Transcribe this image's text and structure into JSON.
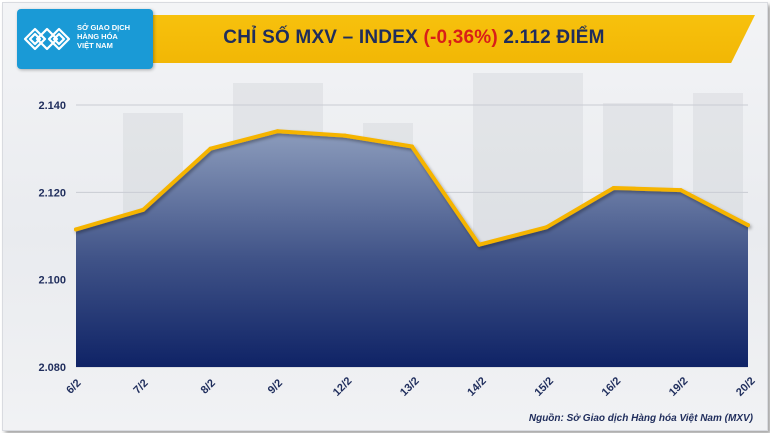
{
  "logo": {
    "lines": [
      "SỞ GIAO DỊCH",
      "HÀNG HÓA",
      "VIỆT NAM"
    ],
    "icon": "mxv-chevron-logo-icon"
  },
  "header": {
    "title_prefix": "CHỈ SỐ MXV – INDEX ",
    "change": "(-0,36%)",
    "title_suffix": " 2.112 ĐIỂM"
  },
  "source": "Nguồn: Sở Giao dịch Hàng hóa Việt Nam (MXV)",
  "colors": {
    "banner": "#f2b705",
    "line": "#f5b400",
    "area_top": "#8c9cbc",
    "area_bottom": "#0f2366",
    "negative": "#d91e18",
    "title": "#1f2d5c"
  },
  "chart_data": {
    "type": "area",
    "categories": [
      "6/2",
      "7/2",
      "8/2",
      "9/2",
      "12/2",
      "13/2",
      "14/2",
      "15/2",
      "16/2",
      "19/2",
      "20/2"
    ],
    "values": [
      2111.5,
      2116,
      2130,
      2134,
      2133,
      2130.5,
      2108,
      2112,
      2121,
      2120.5,
      2112.5
    ],
    "ylim": [
      2080,
      2140
    ],
    "yticks": [
      2080,
      2100,
      2120,
      2140
    ],
    "ytick_labels": [
      "2.080",
      "2.100",
      "2.120",
      "2.140"
    ],
    "grid": true,
    "xlabel": "",
    "ylabel": ""
  }
}
